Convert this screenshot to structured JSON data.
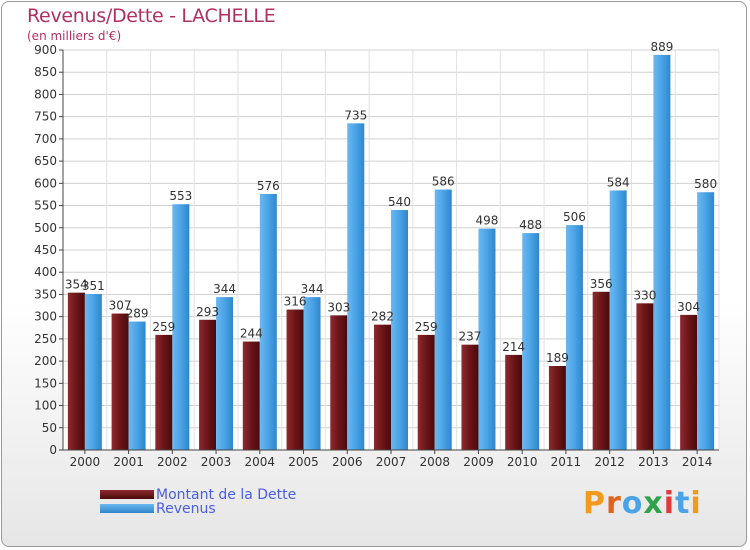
{
  "colors": {
    "dette": "#6b1518",
    "revenus": "#4aa3e6",
    "title": "#b03060",
    "legend_text": "#4a5fe0"
  },
  "chart_data": {
    "type": "bar",
    "title": "Revenus/Dette - LACHELLE",
    "subtitle": "(en milliers d'€)",
    "categories": [
      "2000",
      "2001",
      "2002",
      "2003",
      "2004",
      "2005",
      "2006",
      "2007",
      "2008",
      "2009",
      "2010",
      "2011",
      "2012",
      "2013",
      "2014"
    ],
    "series": [
      {
        "name": "Montant de la Dette",
        "values": [
          354,
          307,
          259,
          293,
          244,
          316,
          303,
          282,
          259,
          237,
          214,
          189,
          356,
          330,
          304
        ]
      },
      {
        "name": "Revenus",
        "values": [
          351,
          289,
          553,
          344,
          576,
          344,
          735,
          540,
          586,
          498,
          488,
          506,
          584,
          889,
          580
        ]
      }
    ],
    "ylim": [
      0,
      900
    ],
    "ytick_step": 50,
    "grid": true,
    "legend": "bottom-left"
  },
  "logo": {
    "text": "Proxiti"
  }
}
